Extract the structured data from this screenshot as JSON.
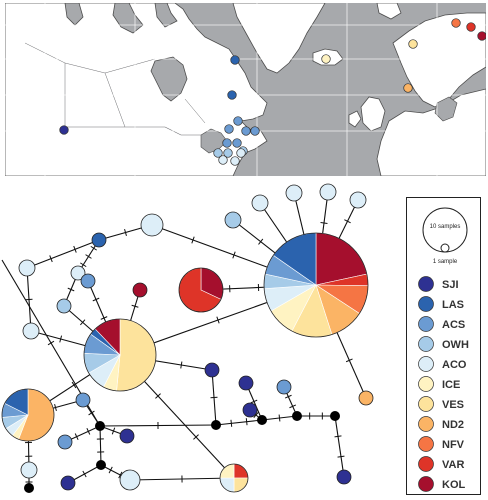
{
  "colors": {
    "SJI": "#2e3192",
    "LAS": "#2b63ae",
    "ACS": "#6b9bd2",
    "OWH": "#a6cbe8",
    "ACO": "#ddeef8",
    "ICE": "#fff3c2",
    "VES": "#fde39c",
    "ND2": "#fbb465",
    "NFV": "#f57544",
    "VAR": "#de3428",
    "KOL": "#a50f2d",
    "hub": "#000000"
  },
  "legend": {
    "scale_large_label": "10 samples",
    "scale_small_label": "1 sample",
    "items": [
      {
        "code": "SJI",
        "label": "SJI"
      },
      {
        "code": "LAS",
        "label": "LAS"
      },
      {
        "code": "ACS",
        "label": "ACS"
      },
      {
        "code": "OWH",
        "label": "OWH"
      },
      {
        "code": "ACO",
        "label": "ACO"
      },
      {
        "code": "ICE",
        "label": "ICE"
      },
      {
        "code": "VES",
        "label": "VES"
      },
      {
        "code": "ND2",
        "label": "ND2"
      },
      {
        "code": "NFV",
        "label": "NFV"
      },
      {
        "code": "VAR",
        "label": "VAR"
      },
      {
        "code": "KOL",
        "label": "KOL"
      }
    ]
  },
  "map_sites": [
    {
      "pop": "SJI"
    },
    {
      "pop": "LAS"
    },
    {
      "pop": "LAS"
    },
    {
      "pop": "ACS"
    },
    {
      "pop": "ACS"
    },
    {
      "pop": "ACS"
    },
    {
      "pop": "ACS"
    },
    {
      "pop": "ACS"
    },
    {
      "pop": "ACS"
    },
    {
      "pop": "OWH"
    },
    {
      "pop": "OWH"
    },
    {
      "pop": "OWH"
    },
    {
      "pop": "ACO"
    },
    {
      "pop": "ACO"
    },
    {
      "pop": "ACO"
    },
    {
      "pop": "ICE"
    },
    {
      "pop": "VES"
    },
    {
      "pop": "ND2"
    },
    {
      "pop": "NFV"
    },
    {
      "pop": "VAR"
    },
    {
      "pop": "KOL"
    }
  ],
  "haplotypes": [
    {
      "id": "H1",
      "slices": [
        [
          "KOL",
          24
        ],
        [
          "VAR",
          4
        ],
        [
          "NFV",
          10
        ],
        [
          "ND2",
          12
        ],
        [
          "VES",
          14
        ],
        [
          "ICE",
          10
        ],
        [
          "ACO",
          8
        ],
        [
          "OWH",
          5
        ],
        [
          "ACS",
          7
        ],
        [
          "LAS",
          17
        ]
      ]
    },
    {
      "id": "H2",
      "slices": [
        [
          "VES",
          34
        ],
        [
          "ICE",
          4
        ],
        [
          "ACO",
          6
        ],
        [
          "OWH",
          6
        ],
        [
          "ACS",
          6
        ],
        [
          "LAS",
          2
        ],
        [
          "KOL",
          8
        ]
      ]
    },
    {
      "id": "H3",
      "slices": [
        [
          "ND2",
          38
        ],
        [
          "ICE",
          3
        ],
        [
          "ACO",
          4
        ],
        [
          "OWH",
          5
        ],
        [
          "ACS",
          6
        ],
        [
          "LAS",
          12
        ]
      ]
    },
    {
      "id": "H4",
      "slices": [
        [
          "KOL",
          32
        ],
        [
          "VAR",
          68
        ]
      ]
    },
    {
      "id": "H5",
      "slices": [
        [
          "VAR",
          25
        ],
        [
          "VES",
          25
        ],
        [
          "ACO",
          25
        ],
        [
          "ICE",
          25
        ]
      ]
    },
    {
      "id": "H6",
      "slices": [
        [
          "ACO",
          100
        ]
      ]
    },
    {
      "id": "H7",
      "slices": [
        [
          "ACO",
          100
        ]
      ]
    },
    {
      "id": "H8",
      "slices": [
        [
          "ACO",
          100
        ]
      ]
    },
    {
      "id": "H9",
      "slices": [
        [
          "ACO",
          100
        ]
      ]
    },
    {
      "id": "H10",
      "slices": [
        [
          "OWH",
          100
        ]
      ]
    },
    {
      "id": "H11",
      "slices": [
        [
          "ACO",
          100
        ]
      ]
    },
    {
      "id": "H12",
      "slices": [
        [
          "LAS",
          100
        ]
      ]
    },
    {
      "id": "H13",
      "slices": [
        [
          "ACO",
          100
        ]
      ]
    },
    {
      "id": "H14",
      "slices": [
        [
          "ACO",
          100
        ]
      ]
    },
    {
      "id": "H15",
      "slices": [
        [
          "OWH",
          100
        ]
      ]
    },
    {
      "id": "H16",
      "slices": [
        [
          "ACS",
          100
        ]
      ]
    },
    {
      "id": "H17",
      "slices": [
        [
          "ACO",
          100
        ]
      ]
    },
    {
      "id": "H18",
      "slices": [
        [
          "KOL",
          100
        ]
      ]
    },
    {
      "id": "H19",
      "slices": [
        [
          "SJI",
          100
        ]
      ]
    },
    {
      "id": "H20",
      "slices": [
        [
          "SJI",
          100
        ]
      ]
    },
    {
      "id": "H21",
      "slices": [
        [
          "ACS",
          100
        ]
      ]
    },
    {
      "id": "H22",
      "slices": [
        [
          "SJI",
          100
        ]
      ]
    },
    {
      "id": "H23",
      "slices": [
        [
          "ACS",
          100
        ]
      ]
    },
    {
      "id": "H24",
      "slices": [
        [
          "ND2",
          100
        ]
      ]
    },
    {
      "id": "H25",
      "slices": [
        [
          "SJI",
          100
        ]
      ]
    },
    {
      "id": "H26",
      "slices": [
        [
          "ACS",
          100
        ]
      ]
    },
    {
      "id": "H27",
      "slices": [
        [
          "SJI",
          100
        ]
      ]
    },
    {
      "id": "H28",
      "slices": [
        [
          "ACO",
          100
        ]
      ]
    },
    {
      "id": "H29",
      "slices": [
        [
          "SJI",
          100
        ]
      ]
    },
    {
      "id": "H30",
      "slices": [
        [
          "SJI",
          100
        ]
      ]
    },
    {
      "id": "H31",
      "slices": [
        [
          "ACO",
          100
        ]
      ]
    },
    {
      "id": "H32",
      "slices": [
        [
          "ACO",
          100
        ]
      ]
    }
  ]
}
